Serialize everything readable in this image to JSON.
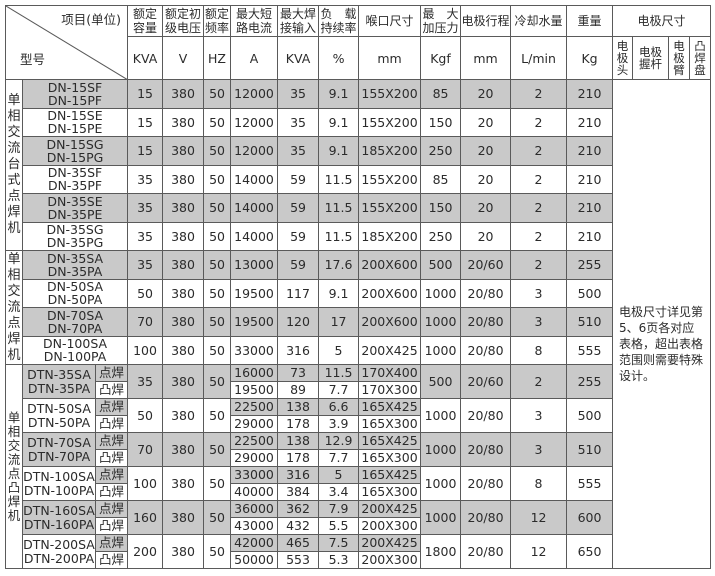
{
  "header": {
    "corner_top": "项目(单位)",
    "corner_bottom": "型号",
    "columns": [
      {
        "label": "额定\n容量",
        "unit": "KVA"
      },
      {
        "label": "额定初\n级电压",
        "unit": "V"
      },
      {
        "label": "额定\n频率",
        "unit": "HZ"
      },
      {
        "label": "最大短\n路电流",
        "unit": "A"
      },
      {
        "label": "最大焊\n接输入",
        "unit": "KVA"
      },
      {
        "label": "负　载\n持续率",
        "unit": "%"
      },
      {
        "label": "喉口尺寸",
        "unit": "mm"
      },
      {
        "label": "最　大\n加压力",
        "unit": "Kgf"
      },
      {
        "label": "电极行程",
        "unit": "mm"
      },
      {
        "label": "冷却水量",
        "unit": "L/min"
      },
      {
        "label": "重量",
        "unit": "Kg"
      }
    ],
    "electrode": {
      "label": "电极尺寸",
      "subs": [
        "电\n极\n头",
        "电极\n握杆",
        "电\n极\n臂",
        "凸\n焊\n盘"
      ]
    }
  },
  "electrode_note": "电极尺寸详见第 5、6页各对应表格，超出表格范围则需要特殊设计。",
  "groups": [
    {
      "category": "单\n相\n交\n流\n台\n式\n点\n焊\n机",
      "rows": [
        {
          "model": "DN-15SF\nDN-15PF",
          "values": [
            "15",
            "380",
            "50",
            "12000",
            "35",
            "9.1",
            "155X200",
            "85",
            "20",
            "2",
            "210"
          ]
        },
        {
          "model": "DN-15SE\nDN-15PE",
          "values": [
            "15",
            "380",
            "50",
            "12000",
            "35",
            "9.1",
            "155X200",
            "150",
            "20",
            "2",
            "210"
          ]
        },
        {
          "model": "DN-15SG\nDN-15PG",
          "values": [
            "15",
            "380",
            "50",
            "12000",
            "35",
            "9.1",
            "185X200",
            "250",
            "20",
            "2",
            "210"
          ]
        },
        {
          "model": "DN-35SF\nDN-35PF",
          "values": [
            "35",
            "380",
            "50",
            "14000",
            "59",
            "11.5",
            "155X200",
            "85",
            "20",
            "2",
            "210"
          ]
        },
        {
          "model": "DN-35SE\nDN-35PE",
          "values": [
            "35",
            "380",
            "50",
            "14000",
            "59",
            "11.5",
            "155X200",
            "150",
            "20",
            "2",
            "210"
          ]
        },
        {
          "model": "DN-35SG\nDN-35PG",
          "values": [
            "35",
            "380",
            "50",
            "14000",
            "59",
            "11.5",
            "185X200",
            "250",
            "20",
            "2",
            "210"
          ]
        }
      ]
    },
    {
      "category": "单\n相\n交\n流\n点\n焊\n机",
      "rows": [
        {
          "model": "DN-35SA\nDN-35PA",
          "values": [
            "35",
            "380",
            "50",
            "13000",
            "59",
            "17.6",
            "200X600",
            "500",
            "20/60",
            "2",
            "255"
          ]
        },
        {
          "model": "DN-50SA\nDN-50PA",
          "values": [
            "50",
            "380",
            "50",
            "19500",
            "117",
            "9.1",
            "200X600",
            "1000",
            "20/80",
            "3",
            "500"
          ]
        },
        {
          "model": "DN-70SA\nDN-70PA",
          "values": [
            "70",
            "380",
            "50",
            "19500",
            "120",
            "17",
            "200X600",
            "1000",
            "20/80",
            "3",
            "510"
          ]
        },
        {
          "model": "DN-100SA\nDN-100PA",
          "values": [
            "100",
            "380",
            "50",
            "33000",
            "316",
            "5",
            "200X425",
            "1000",
            "20/80",
            "8",
            "555"
          ]
        }
      ]
    }
  ],
  "dtn_group": {
    "category": "单\n相\n交\n流\n点\n凸\n焊\n机",
    "type_labels": [
      "点焊",
      "凸焊"
    ],
    "rows": [
      {
        "model": "DTN-35SA\nDTN-35PA",
        "kva": "35",
        "v": "380",
        "hz": "50",
        "sub": [
          [
            "16000",
            "73",
            "11.5",
            "170X400"
          ],
          [
            "19500",
            "89",
            "7.7",
            "170X300"
          ]
        ],
        "kgf": "500",
        "stroke": "20/60",
        "water": "2",
        "weight": "255"
      },
      {
        "model": "DTN-50SA\nDTN-50PA",
        "kva": "50",
        "v": "380",
        "hz": "50",
        "sub": [
          [
            "22500",
            "138",
            "6.6",
            "165X425"
          ],
          [
            "29000",
            "178",
            "3.9",
            "165X300"
          ]
        ],
        "kgf": "1000",
        "stroke": "20/80",
        "water": "3",
        "weight": "500"
      },
      {
        "model": "DTN-70SA\nDTN-70PA",
        "kva": "70",
        "v": "380",
        "hz": "50",
        "sub": [
          [
            "22500",
            "138",
            "12.9",
            "165X425"
          ],
          [
            "29000",
            "178",
            "7.7",
            "165X300"
          ]
        ],
        "kgf": "1000",
        "stroke": "20/80",
        "water": "3",
        "weight": "510"
      },
      {
        "model": "DTN-100SA\nDTN-100PA",
        "kva": "100",
        "v": "380",
        "hz": "50",
        "sub": [
          [
            "33000",
            "316",
            "5",
            "165X425"
          ],
          [
            "40000",
            "384",
            "3.4",
            "165X300"
          ]
        ],
        "kgf": "1000",
        "stroke": "20/80",
        "water": "8",
        "weight": "555"
      },
      {
        "model": "DTN-160SA\nDTN-160PA",
        "kva": "160",
        "v": "380",
        "hz": "50",
        "sub": [
          [
            "36000",
            "362",
            "7.9",
            "200X425"
          ],
          [
            "43000",
            "432",
            "5.5",
            "200X300"
          ]
        ],
        "kgf": "1000",
        "stroke": "20/80",
        "water": "12",
        "weight": "600"
      },
      {
        "model": "DTN-200SA\nDTN-200PA",
        "kva": "200",
        "v": "380",
        "hz": "50",
        "sub": [
          [
            "42000",
            "465",
            "7.5",
            "200X425"
          ],
          [
            "50000",
            "553",
            "5.3",
            "200X300"
          ]
        ],
        "kgf": "1800",
        "stroke": "20/80",
        "water": "12",
        "weight": "650"
      }
    ]
  },
  "colors": {
    "shade": "#c9c9c9",
    "border": "#5a5a5a",
    "text": "#2b2b2b"
  }
}
